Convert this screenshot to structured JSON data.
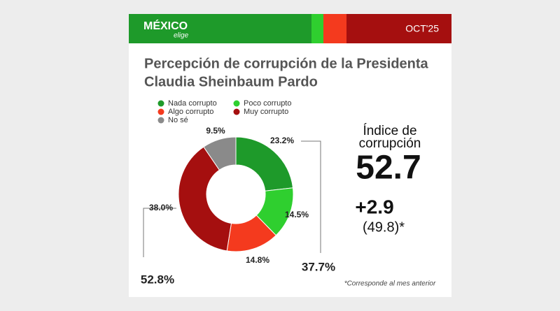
{
  "header": {
    "brand": "MÉXICO",
    "brand_sub": "elige",
    "date": "OCT'25"
  },
  "chart_data": {
    "type": "donut",
    "title": [
      "Percepción de corrupción de la Presidenta",
      "Claudia Sheinbaum Pardo"
    ],
    "categories": [
      "Nada corrupto",
      "Poco corrupto",
      "Algo corrupto",
      "Muy corrupto",
      "No sé"
    ],
    "values": [
      23.2,
      14.5,
      14.8,
      38.0,
      9.5
    ],
    "value_labels": [
      "23.2%",
      "14.5%",
      "14.8%",
      "38.0%",
      "9.5%"
    ],
    "colors": [
      "#1e9a2a",
      "#2fcf2f",
      "#f43a1e",
      "#a50f0f",
      "#8a8a8a"
    ],
    "group_totals": [
      {
        "value": 37.7,
        "label": "37.7%"
      },
      {
        "value": 52.8,
        "label": "52.8%"
      }
    ],
    "index": {
      "title": [
        "Índice de",
        "corrupción"
      ],
      "value": 52.7,
      "change": {
        "value": 2.9,
        "label": "+2.9"
      },
      "previous": {
        "value": 49.8,
        "label": "(49.8)*"
      },
      "note": "*Corresponde al mes anterior"
    }
  }
}
